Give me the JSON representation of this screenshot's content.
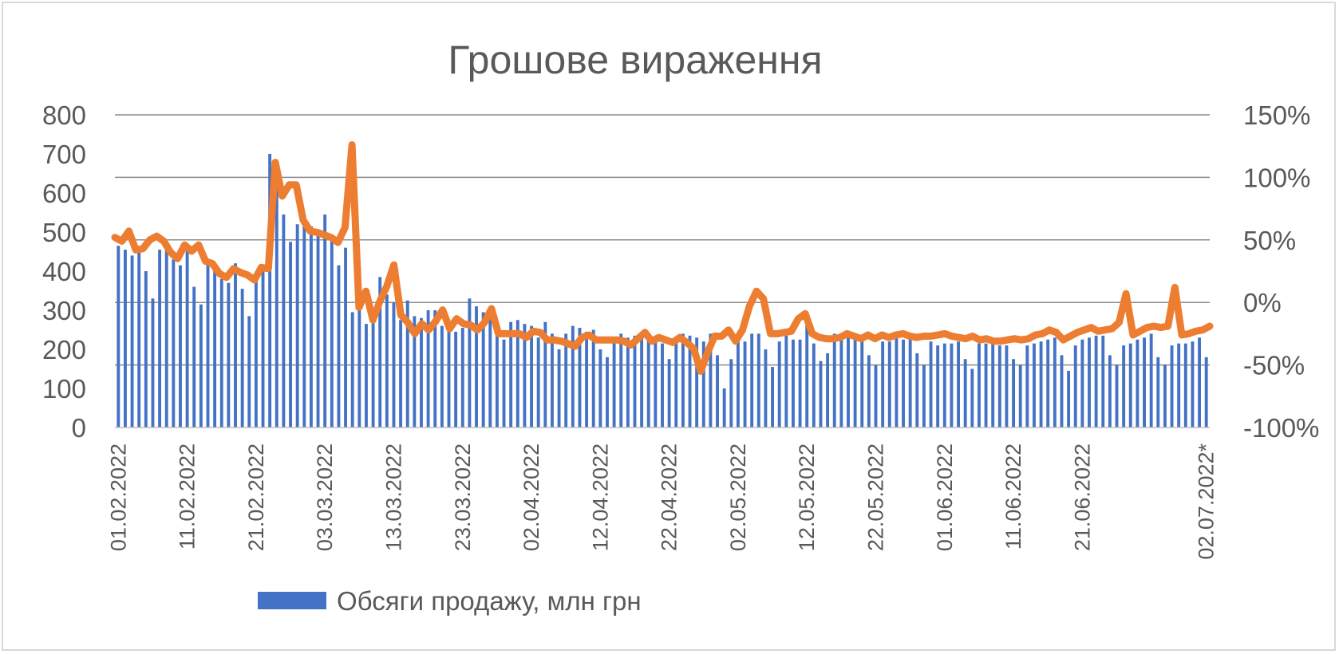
{
  "chart_data": {
    "type": "bar",
    "title": "Грошове вираження",
    "xlabel": "",
    "ylabel": "",
    "ylim": [
      0,
      800
    ],
    "y2lim": [
      -100,
      150
    ],
    "y_ticks": [
      "0",
      "100",
      "200",
      "300",
      "400",
      "500",
      "600",
      "700",
      "800"
    ],
    "y2_ticks": [
      "-100%",
      "-50%",
      "0%",
      "50%",
      "100%",
      "150%"
    ],
    "x_tick_labels": [
      "01.02.2022",
      "11.02.2022",
      "21.02.2022",
      "03.03.2022",
      "13.03.2022",
      "23.03.2022",
      "02.04.2022",
      "12.04.2022",
      "22.04.2022",
      "02.05.2022",
      "12.05.2022",
      "22.05.2022",
      "01.06.2022",
      "11.06.2022",
      "21.06.2022",
      "02.07.2022*"
    ],
    "grid": true,
    "legend_position": "bottom",
    "series": [
      {
        "name": "Обсяги продажу, млн грн",
        "kind": "bar",
        "axis": "left",
        "color": "#4472c4",
        "values": [
          465,
          455,
          440,
          450,
          400,
          330,
          455,
          460,
          430,
          415,
          460,
          360,
          315,
          420,
          400,
          380,
          370,
          420,
          355,
          285,
          390,
          410,
          700,
          645,
          545,
          475,
          520,
          525,
          515,
          505,
          545,
          480,
          415,
          460,
          295,
          410,
          265,
          270,
          385,
          340,
          320,
          275,
          325,
          285,
          280,
          300,
          300,
          260,
          250,
          245,
          255,
          330,
          310,
          295,
          295,
          250,
          225,
          270,
          275,
          265,
          260,
          230,
          270,
          240,
          200,
          240,
          260,
          255,
          245,
          250,
          200,
          180,
          230,
          240,
          230,
          235,
          235,
          240,
          235,
          215,
          175,
          220,
          240,
          235,
          230,
          220,
          240,
          185,
          100,
          175,
          220,
          220,
          240,
          240,
          200,
          155,
          220,
          235,
          225,
          225,
          265,
          215,
          170,
          190,
          240,
          235,
          230,
          230,
          235,
          185,
          160,
          220,
          220,
          230,
          225,
          230,
          190,
          160,
          220,
          210,
          215,
          215,
          220,
          175,
          150,
          215,
          215,
          220,
          210,
          210,
          175,
          160,
          210,
          215,
          220,
          225,
          230,
          185,
          145,
          210,
          225,
          230,
          235,
          235,
          185,
          160,
          210,
          215,
          225,
          230,
          240,
          180,
          160,
          210,
          215,
          215,
          220,
          230,
          180
        ]
      },
      {
        "name": "",
        "kind": "line",
        "axis": "right",
        "color": "#ed7d31",
        "values": [
          52,
          49,
          57,
          42,
          43,
          50,
          53,
          49,
          40,
          35,
          46,
          41,
          46,
          33,
          31,
          23,
          20,
          27,
          24,
          22,
          18,
          28,
          27,
          112,
          85,
          94,
          94,
          66,
          57,
          56,
          54,
          52,
          48,
          60,
          126,
          -4,
          9,
          -14,
          1,
          13,
          30,
          -10,
          -16,
          -25,
          -17,
          -22,
          -15,
          -6,
          -21,
          -13,
          -17,
          -18,
          -22,
          -16,
          -5,
          -25,
          -25,
          -25,
          -25,
          -28,
          -23,
          -24,
          -30,
          -30,
          -31,
          -33,
          -35,
          -28,
          -26,
          -30,
          -30,
          -30,
          -30,
          -31,
          -34,
          -29,
          -24,
          -31,
          -28,
          -30,
          -32,
          -28,
          -32,
          -37,
          -55,
          -40,
          -27,
          -27,
          -22,
          -31,
          -22,
          -3,
          9,
          3,
          -25,
          -25,
          -24,
          -23,
          -13,
          -9,
          -25,
          -28,
          -29,
          -29,
          -28,
          -25,
          -27,
          -29,
          -26,
          -29,
          -26,
          -28,
          -26,
          -25,
          -27,
          -28,
          -27,
          -27,
          -26,
          -25,
          -27,
          -28,
          -29,
          -27,
          -30,
          -29,
          -31,
          -31,
          -30,
          -29,
          -30,
          -29,
          -26,
          -25,
          -22,
          -24,
          -30,
          -27,
          -24,
          -22,
          -20,
          -23,
          -22,
          -21,
          -16,
          7,
          -26,
          -23,
          -20,
          -19,
          -20,
          -19,
          12,
          -26,
          -25,
          -23,
          -22,
          -19
        ]
      }
    ]
  }
}
